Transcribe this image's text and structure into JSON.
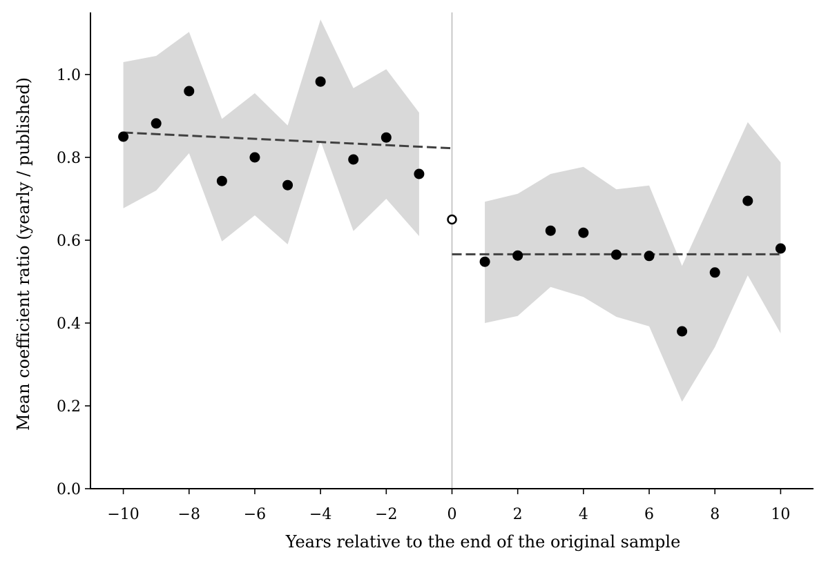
{
  "chart_data": {
    "type": "scatter",
    "xlabel": "Years relative to the end of the original sample",
    "ylabel": "Mean coefficient ratio (yearly / published)",
    "xlim": [
      -11,
      11
    ],
    "ylim": [
      0.0,
      1.15
    ],
    "xticks": [
      -10,
      -8,
      -6,
      -4,
      -2,
      0,
      2,
      4,
      6,
      8,
      10
    ],
    "xtick_labels": [
      "−10",
      "−8",
      "−6",
      "−4",
      "−2",
      "0",
      "2",
      "4",
      "6",
      "8",
      "10"
    ],
    "yticks": [
      0.0,
      0.2,
      0.4,
      0.6,
      0.8,
      1.0
    ],
    "ytick_labels": [
      "0.0",
      "0.2",
      "0.4",
      "0.6",
      "0.8",
      "1.0"
    ],
    "grid": false,
    "vertical_reference_line_x": 0,
    "points": [
      {
        "x": -10,
        "y": 0.85,
        "lo": 0.677,
        "hi": 1.03
      },
      {
        "x": -9,
        "y": 0.882,
        "lo": 0.72,
        "hi": 1.045
      },
      {
        "x": -8,
        "y": 0.96,
        "lo": 0.81,
        "hi": 1.103
      },
      {
        "x": -7,
        "y": 0.743,
        "lo": 0.597,
        "hi": 0.893
      },
      {
        "x": -6,
        "y": 0.8,
        "lo": 0.66,
        "hi": 0.955
      },
      {
        "x": -5,
        "y": 0.733,
        "lo": 0.59,
        "hi": 0.877
      },
      {
        "x": -4,
        "y": 0.983,
        "lo": 0.84,
        "hi": 1.133
      },
      {
        "x": -3,
        "y": 0.795,
        "lo": 0.622,
        "hi": 0.967
      },
      {
        "x": -2,
        "y": 0.848,
        "lo": 0.7,
        "hi": 1.013
      },
      {
        "x": -1,
        "y": 0.76,
        "lo": 0.61,
        "hi": 0.908
      },
      {
        "x": 1,
        "y": 0.548,
        "lo": 0.4,
        "hi": 0.693
      },
      {
        "x": 2,
        "y": 0.563,
        "lo": 0.417,
        "hi": 0.712
      },
      {
        "x": 3,
        "y": 0.623,
        "lo": 0.487,
        "hi": 0.76
      },
      {
        "x": 4,
        "y": 0.618,
        "lo": 0.463,
        "hi": 0.777
      },
      {
        "x": 5,
        "y": 0.565,
        "lo": 0.415,
        "hi": 0.723
      },
      {
        "x": 6,
        "y": 0.562,
        "lo": 0.392,
        "hi": 0.732
      },
      {
        "x": 7,
        "y": 0.38,
        "lo": 0.21,
        "hi": 0.538
      },
      {
        "x": 8,
        "y": 0.522,
        "lo": 0.342,
        "hi": 0.712
      },
      {
        "x": 9,
        "y": 0.695,
        "lo": 0.515,
        "hi": 0.885
      },
      {
        "x": 10,
        "y": 0.58,
        "lo": 0.375,
        "hi": 0.788
      }
    ],
    "open_point": {
      "x": 0,
      "y": 0.65
    },
    "trend_lines": [
      {
        "x": [
          -10,
          0
        ],
        "y": [
          0.86,
          0.822
        ]
      },
      {
        "x": [
          0,
          10
        ],
        "y": [
          0.566,
          0.566
        ]
      }
    ],
    "colors": {
      "points": "#000000",
      "band": "#d9d9d9",
      "trend": "#404040",
      "refline": "#bdbdbd"
    }
  }
}
